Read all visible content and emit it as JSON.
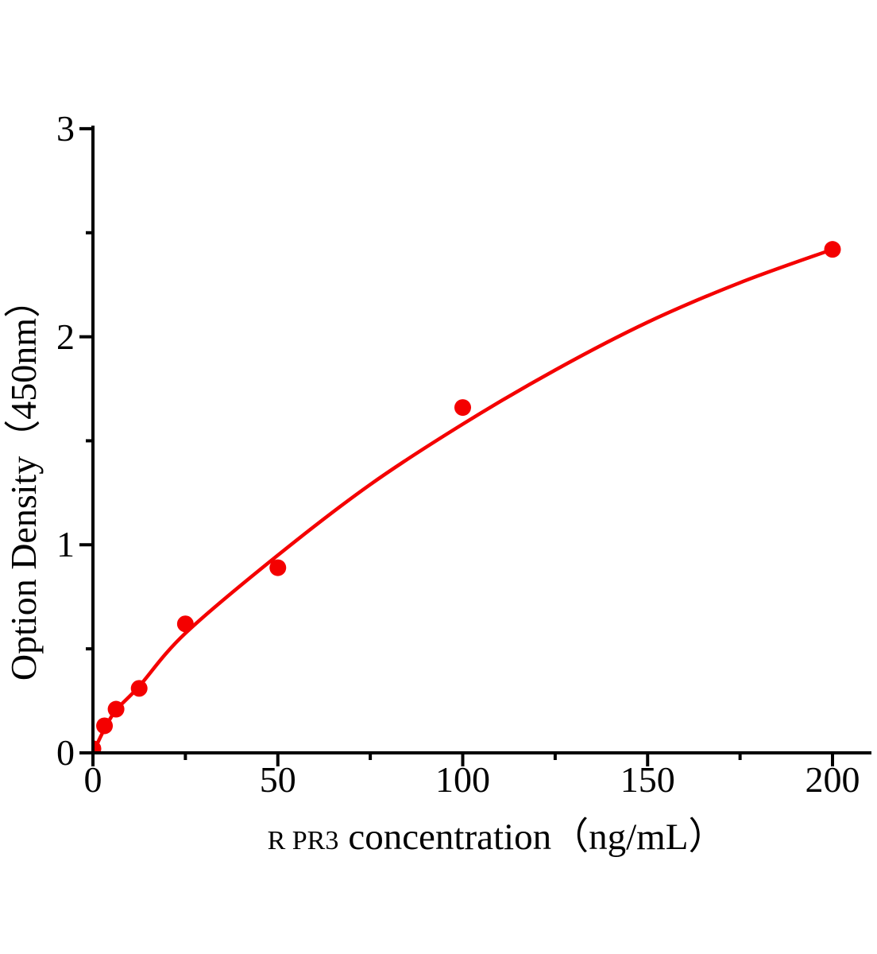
{
  "chart_data": {
    "type": "scatter",
    "title": "",
    "ylabel": "Option Density（450nm）",
    "xlabel_prefix": "R PR3",
    "xlabel_main": "concentration（ng/mL）",
    "xlim": [
      0,
      211
    ],
    "ylim": [
      0,
      3
    ],
    "x_ticks_major": [
      0,
      50,
      100,
      150,
      200
    ],
    "x_ticks_minor": [
      25,
      75,
      125,
      175
    ],
    "y_ticks_major": [
      0,
      1,
      2,
      3
    ],
    "y_ticks_minor": [
      0.5,
      1.5,
      2.5
    ],
    "grid": false,
    "legend": null,
    "point_color": "#f40000",
    "curve_color": "#f40000",
    "axis_color": "#000000",
    "background_color": "#ffffff",
    "points": [
      {
        "x": 0,
        "y": 0.02
      },
      {
        "x": 3.125,
        "y": 0.13
      },
      {
        "x": 6.25,
        "y": 0.21
      },
      {
        "x": 12.5,
        "y": 0.31
      },
      {
        "x": 25,
        "y": 0.62
      },
      {
        "x": 50,
        "y": 0.89
      },
      {
        "x": 100,
        "y": 1.66
      },
      {
        "x": 200,
        "y": 2.42
      }
    ],
    "fit_curve": [
      {
        "x": 0,
        "y": 0.0
      },
      {
        "x": 3.125,
        "y": 0.115
      },
      {
        "x": 6.25,
        "y": 0.205
      },
      {
        "x": 12.5,
        "y": 0.32
      },
      {
        "x": 25,
        "y": 0.575
      },
      {
        "x": 50,
        "y": 0.95
      },
      {
        "x": 75,
        "y": 1.29
      },
      {
        "x": 100,
        "y": 1.58
      },
      {
        "x": 125,
        "y": 1.84
      },
      {
        "x": 150,
        "y": 2.07
      },
      {
        "x": 175,
        "y": 2.26
      },
      {
        "x": 200,
        "y": 2.42
      }
    ]
  }
}
